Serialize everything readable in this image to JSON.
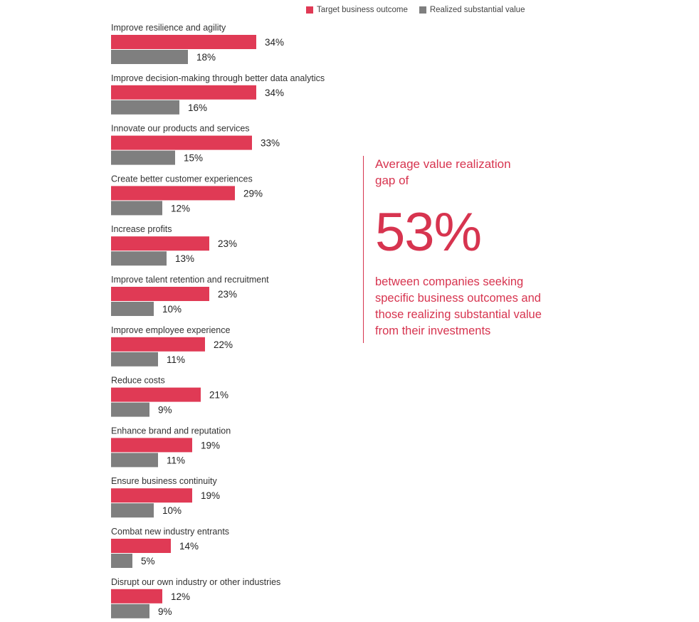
{
  "chart_data": {
    "type": "bar",
    "orientation": "horizontal",
    "categories": [
      "Improve resilience and agility",
      "Improve decision-making through better data analytics",
      "Innovate our products and services",
      "Create better customer experiences",
      "Increase profits",
      "Improve talent retention and recruitment",
      "Improve employee experience",
      "Reduce costs",
      "Enhance brand and reputation",
      "Ensure business continuity",
      "Combat new industry entrants",
      "Disrupt our own industry or other industries"
    ],
    "series": [
      {
        "name": "Target business outcome",
        "color": "#e03a55",
        "values": [
          34,
          34,
          33,
          29,
          23,
          23,
          22,
          21,
          19,
          19,
          14,
          12
        ],
        "labels": [
          "34%",
          "34%",
          "33%",
          "29%",
          "23%",
          "23%",
          "22%",
          "21%",
          "19%",
          "19%",
          "14%",
          "12%"
        ]
      },
      {
        "name": "Realized substantial value",
        "color": "#7f7f7f",
        "values": [
          18,
          16,
          15,
          12,
          13,
          10,
          11,
          9,
          11,
          10,
          5,
          9
        ],
        "labels": [
          "18%",
          "16%",
          "15%",
          "12%",
          "13%",
          "10%",
          "11%",
          "9%",
          "11%",
          "10%",
          "5%",
          "9%"
        ]
      }
    ],
    "unit": "%",
    "xlim": [
      0,
      100
    ],
    "grid": false,
    "legend_position": "top"
  },
  "callout": {
    "top_text": "Average value realization gap of",
    "big_number": "53%",
    "bottom_text": "between companies seeking specific business outcomes and those realizing substantial value from their investments",
    "color": "#d7344f"
  }
}
